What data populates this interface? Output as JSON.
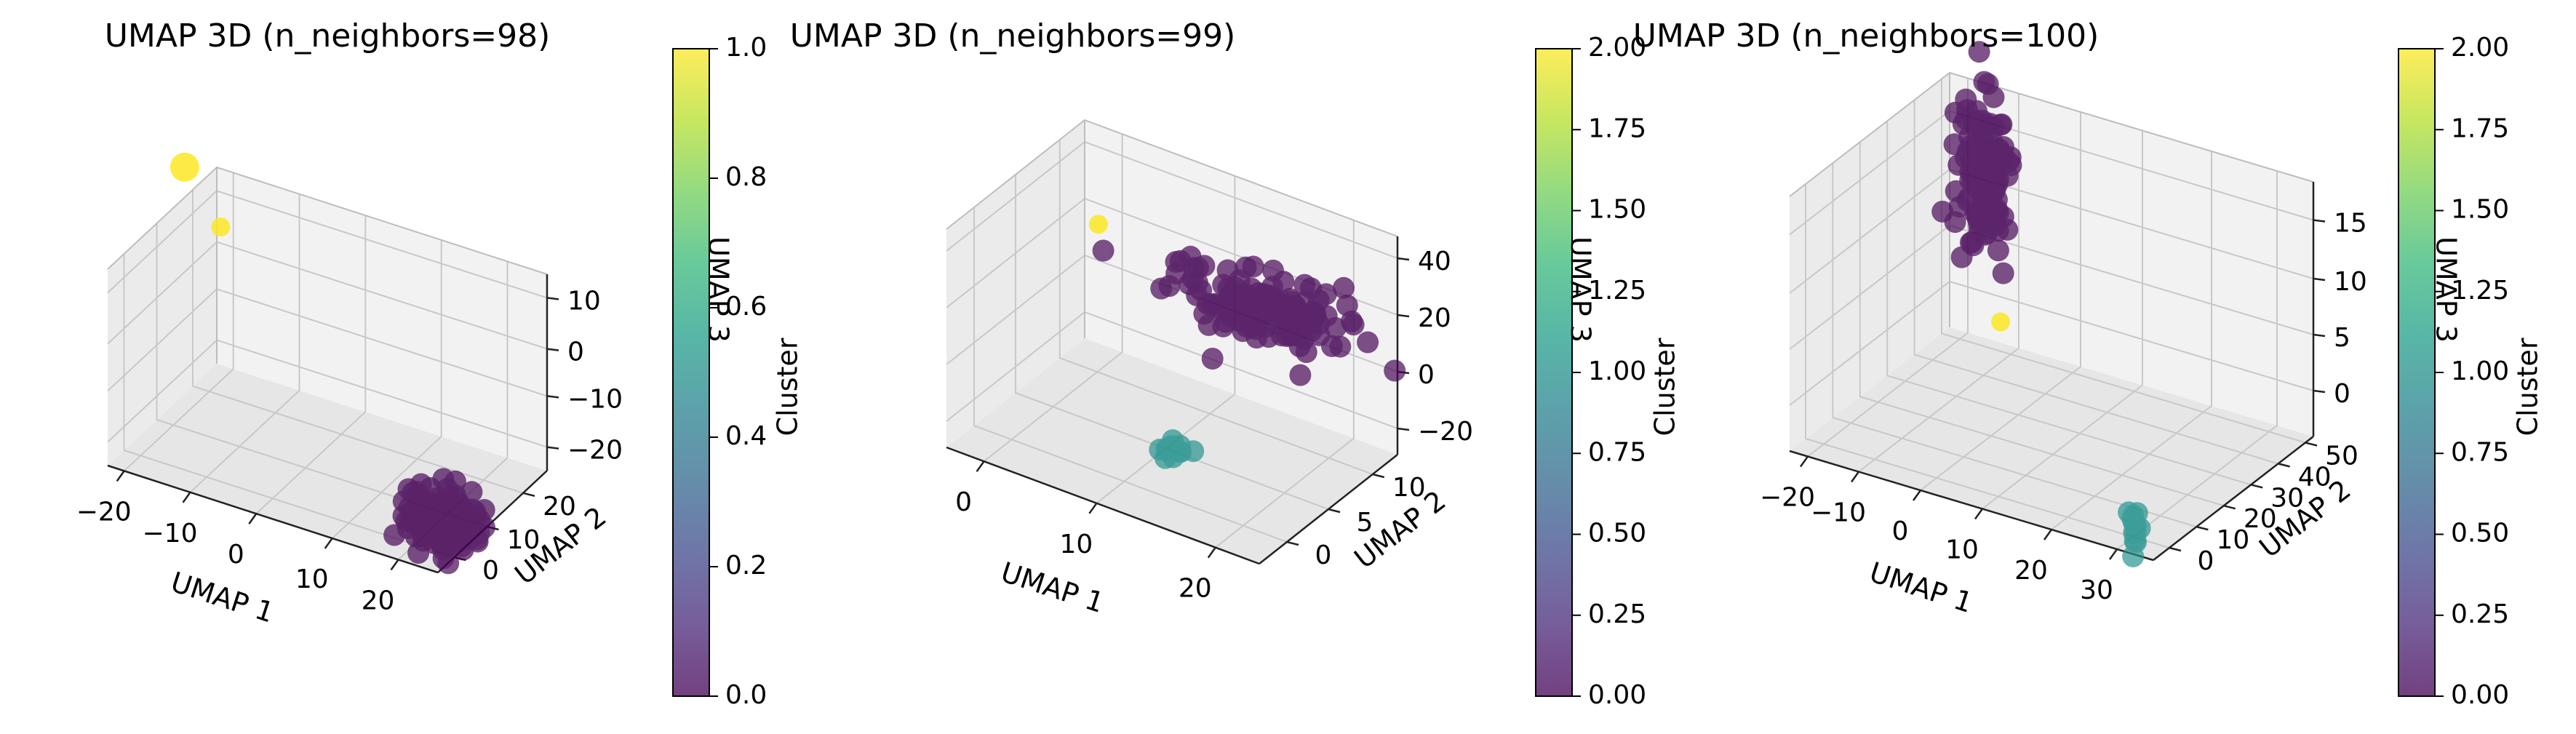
{
  "chart_data": [
    {
      "type": "scatter",
      "projection": "3d",
      "title": "UMAP 3D (n_neighbors=98)",
      "xlabel": "UMAP 1",
      "ylabel": "UMAP 2",
      "zlabel": "UMAP 3",
      "xticks": [
        "−20",
        "−10",
        "0",
        "10",
        "20"
      ],
      "yticks": [
        "0",
        "10",
        "20"
      ],
      "zticks": [
        "−20",
        "−10",
        "0",
        "10"
      ],
      "colorbar": {
        "label": "Cluster",
        "range": [
          0,
          1
        ],
        "ticks": [
          "0.0",
          "0.2",
          "0.4",
          "0.6",
          "0.8",
          "1.0"
        ]
      },
      "clusters": [
        {
          "cluster": 0,
          "color": "#440154",
          "center": [
            22,
            2,
            -25
          ],
          "spread": [
            3,
            2,
            3
          ]
        },
        {
          "cluster": 1,
          "color": "#fde725",
          "points": [
            [
              -26,
              18,
              20
            ],
            [
              -20,
              17,
              10
            ]
          ]
        }
      ]
    },
    {
      "type": "scatter",
      "projection": "3d",
      "title": "UMAP 3D (n_neighbors=99)",
      "xlabel": "UMAP 1",
      "ylabel": "UMAP 2",
      "zlabel": "UMAP 3",
      "xticks": [
        "0",
        "10",
        "20"
      ],
      "yticks": [
        "0",
        "5",
        "10"
      ],
      "zticks": [
        "−20",
        "0",
        "20",
        "40"
      ],
      "colorbar": {
        "label": "Cluster",
        "range": [
          0,
          2
        ],
        "ticks": [
          "0.00",
          "0.25",
          "0.50",
          "0.75",
          "1.00",
          "1.25",
          "1.50",
          "1.75",
          "2.00"
        ]
      },
      "clusters": [
        {
          "cluster": 0,
          "color": "#440154",
          "center": [
            15,
            11,
            18
          ],
          "spread": [
            4,
            1.5,
            5
          ]
        },
        {
          "cluster": 1,
          "color": "#21918c",
          "center": [
            12,
            3,
            -20
          ],
          "spread": [
            0.8,
            0.5,
            1
          ]
        },
        {
          "cluster": 2,
          "color": "#fde725",
          "points": [
            [
              0,
              10,
              30
            ]
          ]
        }
      ]
    },
    {
      "type": "scatter",
      "projection": "3d",
      "title": "UMAP 3D (n_neighbors=100)",
      "xlabel": "UMAP 1",
      "ylabel": "UMAP 2",
      "zlabel": "UMAP 3",
      "xticks": [
        "−20",
        "−10",
        "0",
        "10",
        "20",
        "30"
      ],
      "yticks": [
        "0",
        "10",
        "20",
        "30",
        "40",
        "50"
      ],
      "zticks": [
        "0",
        "5",
        "10",
        "15"
      ],
      "colorbar": {
        "label": "Cluster",
        "range": [
          0,
          2
        ],
        "ticks": [
          "0.00",
          "0.25",
          "0.50",
          "0.75",
          "1.00",
          "1.25",
          "1.50",
          "1.75",
          "2.00"
        ]
      },
      "clusters": [
        {
          "cluster": 0,
          "color": "#440154",
          "center": [
            -15,
            45,
            12
          ],
          "spread": [
            2,
            2,
            3
          ]
        },
        {
          "cluster": 1,
          "color": "#21918c",
          "center": [
            30,
            0,
            -2
          ],
          "spread": [
            0.6,
            0.6,
            0.8
          ]
        },
        {
          "cluster": 2,
          "color": "#fde725",
          "points": [
            [
              -10,
              40,
              2
            ]
          ]
        }
      ]
    }
  ],
  "colors": {
    "viridis": [
      "#440154",
      "#482878",
      "#3e4989",
      "#31688e",
      "#26828e",
      "#1f9e89",
      "#35b779",
      "#6ece58",
      "#b5de2b",
      "#fde725"
    ]
  }
}
